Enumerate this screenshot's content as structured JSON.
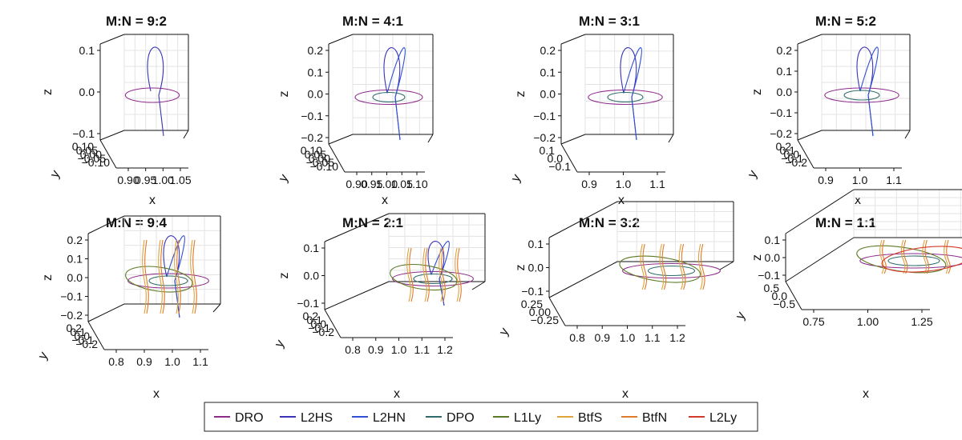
{
  "chart_data": [
    {
      "type": "line",
      "title": "M:N = 9:2",
      "xlabel": "x",
      "ylabel": "y",
      "zlabel": "z",
      "z_ticks": [
        "0.1",
        "0.0",
        "−0.1"
      ],
      "x_ticks": [
        "0.90",
        "0.95",
        "1.00",
        "1.05"
      ],
      "y_ticks": [
        "0.10",
        "0.05",
        "0.00",
        "−0.05",
        "−0.10"
      ],
      "series": [
        "DRO",
        "L2HS"
      ]
    },
    {
      "type": "line",
      "title": "M:N = 4:1",
      "xlabel": "x",
      "ylabel": "y",
      "zlabel": "z",
      "z_ticks": [
        "0.2",
        "0.1",
        "0.0",
        "−0.1",
        "−0.2"
      ],
      "x_ticks": [
        "0.90",
        "0.95",
        "1.00",
        "1.05",
        "1.10"
      ],
      "y_ticks": [
        "0.10",
        "0.05",
        "0.00",
        "−0.05",
        "−0.10"
      ],
      "series": [
        "DRO",
        "L2HS",
        "L2HN",
        "DPO"
      ]
    },
    {
      "type": "line",
      "title": "M:N = 3:1",
      "xlabel": "x",
      "ylabel": "y",
      "zlabel": "z",
      "z_ticks": [
        "0.2",
        "0.1",
        "0.0",
        "−0.1",
        "−0.2"
      ],
      "x_ticks": [
        "0.9",
        "1.0",
        "1.1"
      ],
      "y_ticks": [
        "0.1",
        "0.0",
        "−0.1"
      ],
      "series": [
        "DRO",
        "L2HS",
        "L2HN",
        "DPO"
      ]
    },
    {
      "type": "line",
      "title": "M:N = 5:2",
      "xlabel": "x",
      "ylabel": "y",
      "zlabel": "z",
      "z_ticks": [
        "0.2",
        "0.1",
        "0.0",
        "−0.1",
        "−0.2"
      ],
      "x_ticks": [
        "0.9",
        "1.0",
        "1.1"
      ],
      "y_ticks": [
        "0.2",
        "0.1",
        "0.0",
        "−0.1",
        "−0.2"
      ],
      "series": [
        "DRO",
        "L2HS",
        "L2HN",
        "DPO"
      ]
    },
    {
      "type": "line",
      "title": "M:N = 9:4",
      "xlabel": "x",
      "ylabel": "y",
      "zlabel": "z",
      "z_ticks": [
        "0.2",
        "0.1",
        "0.0",
        "−0.1",
        "−0.2"
      ],
      "x_ticks": [
        "0.8",
        "0.9",
        "1.0",
        "1.1"
      ],
      "y_ticks": [
        "0.2",
        "0.1",
        "0.0",
        "−0.1",
        "−0.2"
      ],
      "series": [
        "DRO",
        "L2HS",
        "L2HN",
        "DPO",
        "L1Ly",
        "BtfS",
        "BtfN"
      ]
    },
    {
      "type": "line",
      "title": "M:N = 2:1",
      "xlabel": "x",
      "ylabel": "y",
      "zlabel": "z",
      "z_ticks": [
        "0.1",
        "0.0",
        "−0.1"
      ],
      "x_ticks": [
        "0.8",
        "0.9",
        "1.0",
        "1.1",
        "1.2"
      ],
      "y_ticks": [
        "0.2",
        "0.1",
        "0.0",
        "−0.1",
        "−0.2"
      ],
      "series": [
        "DRO",
        "L2HS",
        "L2HN",
        "DPO",
        "L1Ly",
        "BtfS",
        "BtfN"
      ]
    },
    {
      "type": "line",
      "title": "M:N = 3:2",
      "xlabel": "x",
      "ylabel": "y",
      "zlabel": "z",
      "z_ticks": [
        "0.1",
        "0.0",
        "−0.1"
      ],
      "x_ticks": [
        "0.8",
        "0.9",
        "1.0",
        "1.1",
        "1.2"
      ],
      "y_ticks": [
        "0.25",
        "0.00",
        "−0.25"
      ],
      "series": [
        "DRO",
        "DPO",
        "L1Ly",
        "BtfS",
        "BtfN"
      ]
    },
    {
      "type": "line",
      "title": "M:N = 1:1",
      "xlabel": "x",
      "ylabel": "y",
      "zlabel": "z",
      "z_ticks": [
        "0.1",
        "0.0",
        "−0.1"
      ],
      "x_ticks": [
        "0.75",
        "1.00",
        "1.25"
      ],
      "y_ticks": [
        "0.5",
        "0.0",
        "−0.5"
      ],
      "series": [
        "DRO",
        "DPO",
        "L1Ly",
        "BtfS",
        "BtfN",
        "L2Ly"
      ]
    }
  ],
  "legend": {
    "position": "bottom-center",
    "items": [
      {
        "label": "DRO",
        "color": "#8e2c8c"
      },
      {
        "label": "L2HS",
        "color": "#3a33b8"
      },
      {
        "label": "L2HN",
        "color": "#2f4fd4"
      },
      {
        "label": "DPO",
        "color": "#2e6b6a"
      },
      {
        "label": "L1Ly",
        "color": "#5b7a25"
      },
      {
        "label": "BtfS",
        "color": "#e0a23a"
      },
      {
        "label": "BtfN",
        "color": "#e07a2a"
      },
      {
        "label": "L2Ly",
        "color": "#d43a2a"
      }
    ]
  }
}
